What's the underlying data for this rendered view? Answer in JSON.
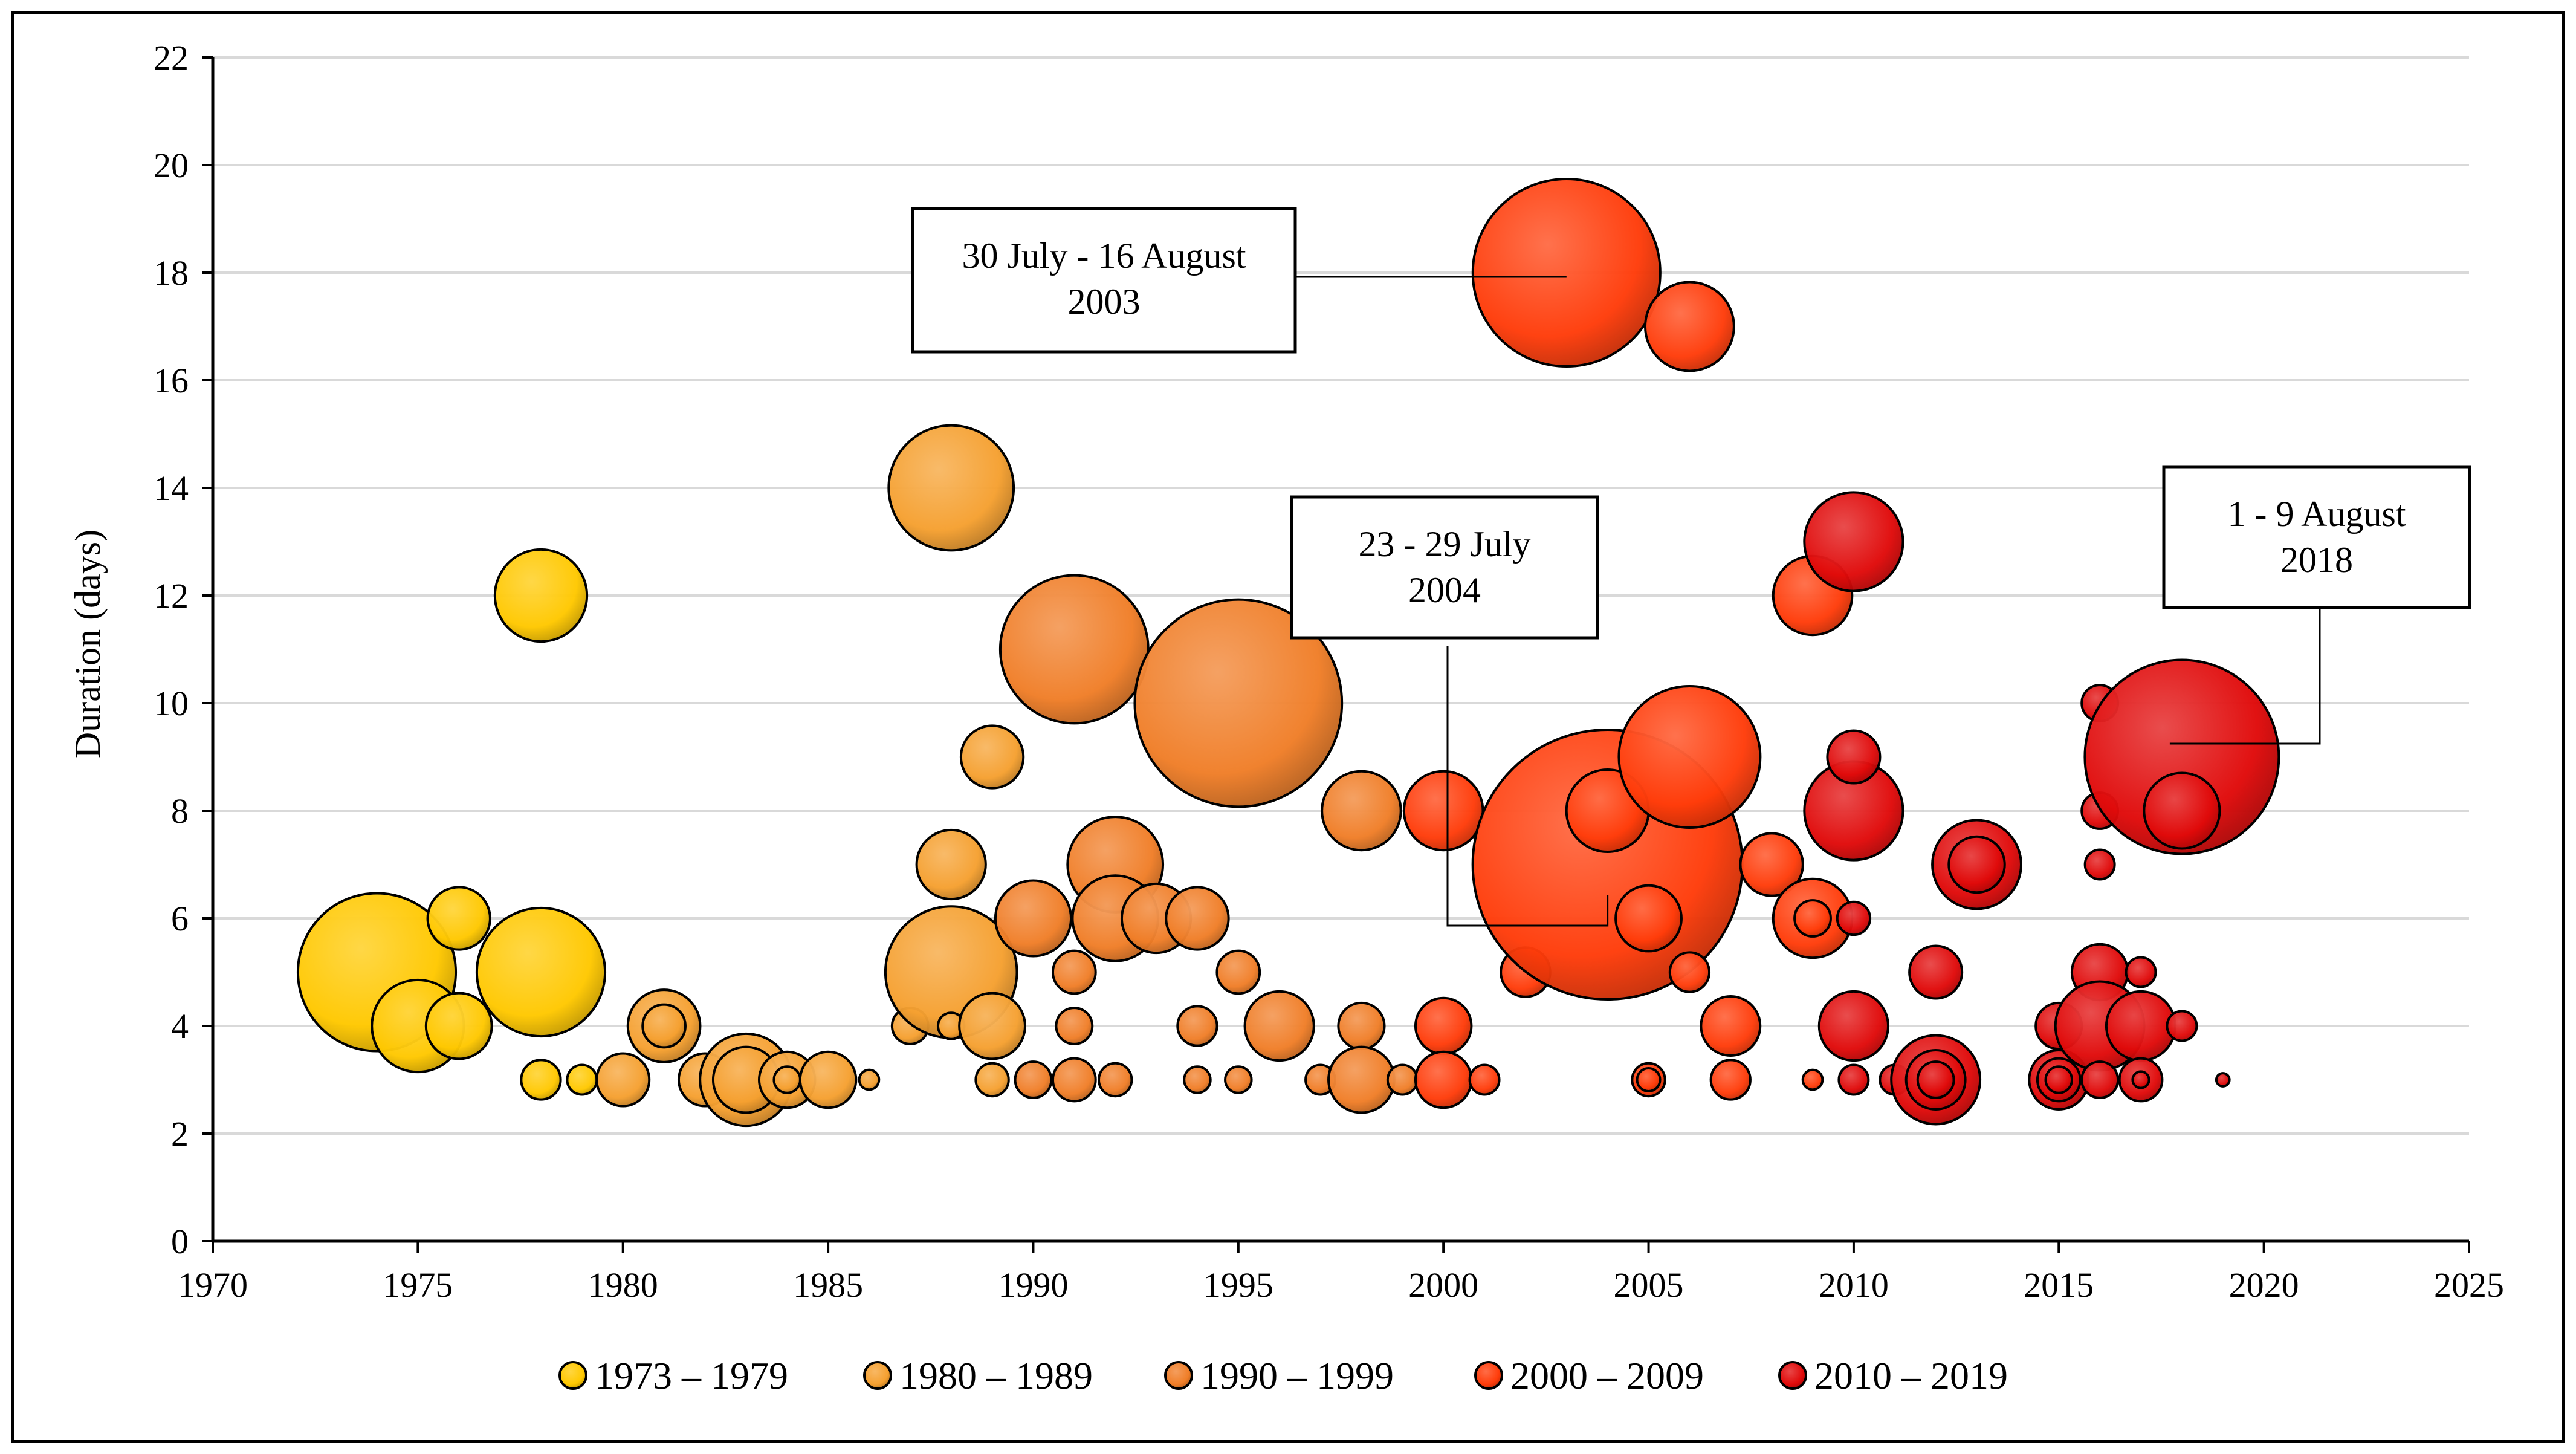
{
  "chart_data": {
    "type": "bubble",
    "title": "",
    "xlabel": "",
    "ylabel": "Duration (days)",
    "xlim": [
      1970,
      2025
    ],
    "ylim": [
      0,
      22
    ],
    "xticks": [
      "1970",
      "1975",
      "1980",
      "1985",
      "1990",
      "1995",
      "2000",
      "2005",
      "2010",
      "2015",
      "2020",
      "2025"
    ],
    "yticks": [
      "0",
      "2",
      "4",
      "6",
      "8",
      "10",
      "12",
      "14",
      "16",
      "18",
      "20",
      "22"
    ],
    "grid": "horizontal",
    "legend_position": "bottom",
    "series": [
      {
        "name": "1973 – 1979",
        "color": "#FFC800",
        "points": [
          {
            "x": 1974,
            "y": 5,
            "r": 48
          },
          {
            "x": 1975,
            "y": 4,
            "r": 28
          },
          {
            "x": 1976,
            "y": 6,
            "r": 19
          },
          {
            "x": 1976,
            "y": 4,
            "r": 20
          },
          {
            "x": 1978,
            "y": 12,
            "r": 28
          },
          {
            "x": 1978,
            "y": 5,
            "r": 39
          },
          {
            "x": 1978,
            "y": 3,
            "r": 12
          },
          {
            "x": 1979,
            "y": 3,
            "r": 9
          }
        ]
      },
      {
        "name": "1980 – 1989",
        "color": "#F5A030",
        "points": [
          {
            "x": 1980,
            "y": 3,
            "r": 16
          },
          {
            "x": 1981,
            "y": 4,
            "r": 22
          },
          {
            "x": 1981,
            "y": 4,
            "r": 13
          },
          {
            "x": 1982,
            "y": 3,
            "r": 16
          },
          {
            "x": 1983,
            "y": 3,
            "r": 28
          },
          {
            "x": 1983,
            "y": 3,
            "r": 20
          },
          {
            "x": 1984,
            "y": 3,
            "r": 17
          },
          {
            "x": 1984,
            "y": 3,
            "r": 8
          },
          {
            "x": 1985,
            "y": 3,
            "r": 17
          },
          {
            "x": 1986,
            "y": 3,
            "r": 6
          },
          {
            "x": 1987,
            "y": 4,
            "r": 11
          },
          {
            "x": 1988,
            "y": 14,
            "r": 38
          },
          {
            "x": 1988,
            "y": 7,
            "r": 21
          },
          {
            "x": 1988,
            "y": 5,
            "r": 40
          },
          {
            "x": 1988,
            "y": 4,
            "r": 8
          },
          {
            "x": 1989,
            "y": 9,
            "r": 19
          },
          {
            "x": 1989,
            "y": 4,
            "r": 20
          },
          {
            "x": 1989,
            "y": 3,
            "r": 10
          }
        ]
      },
      {
        "name": "1990 – 1999",
        "color": "#F07E28",
        "points": [
          {
            "x": 1990,
            "y": 6,
            "r": 23
          },
          {
            "x": 1990,
            "y": 3,
            "r": 11
          },
          {
            "x": 1991,
            "y": 11,
            "r": 45
          },
          {
            "x": 1991,
            "y": 5,
            "r": 13
          },
          {
            "x": 1991,
            "y": 4,
            "r": 11
          },
          {
            "x": 1991,
            "y": 3,
            "r": 13
          },
          {
            "x": 1992,
            "y": 7,
            "r": 29
          },
          {
            "x": 1992,
            "y": 6,
            "r": 26
          },
          {
            "x": 1992,
            "y": 3,
            "r": 10
          },
          {
            "x": 1993,
            "y": 6,
            "r": 21
          },
          {
            "x": 1994,
            "y": 6,
            "r": 19
          },
          {
            "x": 1994,
            "y": 4,
            "r": 12
          },
          {
            "x": 1994,
            "y": 3,
            "r": 8
          },
          {
            "x": 1995,
            "y": 10,
            "r": 63
          },
          {
            "x": 1995,
            "y": 5,
            "r": 13
          },
          {
            "x": 1995,
            "y": 3,
            "r": 8
          },
          {
            "x": 1996,
            "y": 4,
            "r": 21
          },
          {
            "x": 1997,
            "y": 3,
            "r": 9
          },
          {
            "x": 1998,
            "y": 8,
            "r": 24
          },
          {
            "x": 1998,
            "y": 4,
            "r": 14
          },
          {
            "x": 1998,
            "y": 3,
            "r": 20
          },
          {
            "x": 1999,
            "y": 3,
            "r": 9
          }
        ]
      },
      {
        "name": "2000 – 2009",
        "color": "#FF3C0A",
        "points": [
          {
            "x": 2000,
            "y": 8,
            "r": 24
          },
          {
            "x": 2000,
            "y": 4,
            "r": 17
          },
          {
            "x": 2000,
            "y": 3,
            "r": 17
          },
          {
            "x": 2001,
            "y": 3,
            "r": 9
          },
          {
            "x": 2002,
            "y": 5,
            "r": 15
          },
          {
            "x": 2003,
            "y": 18,
            "r": 57
          },
          {
            "x": 2004,
            "y": 7,
            "r": 82
          },
          {
            "x": 2004,
            "y": 8,
            "r": 25
          },
          {
            "x": 2005,
            "y": 6,
            "r": 20
          },
          {
            "x": 2005,
            "y": 3,
            "r": 10
          },
          {
            "x": 2005,
            "y": 3,
            "r": 7
          },
          {
            "x": 2006,
            "y": 17,
            "r": 27
          },
          {
            "x": 2006,
            "y": 9,
            "r": 43
          },
          {
            "x": 2006,
            "y": 5,
            "r": 12
          },
          {
            "x": 2007,
            "y": 4,
            "r": 18
          },
          {
            "x": 2007,
            "y": 3,
            "r": 12
          },
          {
            "x": 2008,
            "y": 7,
            "r": 19
          },
          {
            "x": 2009,
            "y": 12,
            "r": 24
          },
          {
            "x": 2009,
            "y": 6,
            "r": 24
          },
          {
            "x": 2009,
            "y": 6,
            "r": 11
          },
          {
            "x": 2009,
            "y": 3,
            "r": 6
          }
        ]
      },
      {
        "name": "2010 – 2019",
        "color": "#E00A0A",
        "points": [
          {
            "x": 2010,
            "y": 13,
            "r": 30
          },
          {
            "x": 2010,
            "y": 8,
            "r": 30
          },
          {
            "x": 2010,
            "y": 9,
            "r": 16
          },
          {
            "x": 2010,
            "y": 6,
            "r": 10
          },
          {
            "x": 2010,
            "y": 4,
            "r": 21
          },
          {
            "x": 2010,
            "y": 3,
            "r": 9
          },
          {
            "x": 2011,
            "y": 3,
            "r": 9
          },
          {
            "x": 2012,
            "y": 5,
            "r": 16
          },
          {
            "x": 2012,
            "y": 3,
            "r": 27
          },
          {
            "x": 2012,
            "y": 3,
            "r": 18
          },
          {
            "x": 2012,
            "y": 3,
            "r": 11
          },
          {
            "x": 2013,
            "y": 7,
            "r": 27
          },
          {
            "x": 2013,
            "y": 7,
            "r": 17
          },
          {
            "x": 2015,
            "y": 4,
            "r": 14
          },
          {
            "x": 2015,
            "y": 3,
            "r": 18
          },
          {
            "x": 2015,
            "y": 3,
            "r": 13
          },
          {
            "x": 2015,
            "y": 3,
            "r": 8
          },
          {
            "x": 2016,
            "y": 10,
            "r": 11
          },
          {
            "x": 2016,
            "y": 8,
            "r": 11
          },
          {
            "x": 2016,
            "y": 7,
            "r": 9
          },
          {
            "x": 2016,
            "y": 5,
            "r": 17
          },
          {
            "x": 2016,
            "y": 4,
            "r": 27
          },
          {
            "x": 2016,
            "y": 3,
            "r": 11
          },
          {
            "x": 2017,
            "y": 5,
            "r": 9
          },
          {
            "x": 2017,
            "y": 4,
            "r": 21
          },
          {
            "x": 2017,
            "y": 3,
            "r": 13
          },
          {
            "x": 2017,
            "y": 3,
            "r": 5
          },
          {
            "x": 2018,
            "y": 9,
            "r": 59
          },
          {
            "x": 2018,
            "y": 8,
            "r": 23
          },
          {
            "x": 2018,
            "y": 4,
            "r": 9
          },
          {
            "x": 2019,
            "y": 3,
            "r": 4
          }
        ]
      }
    ],
    "annotations": [
      {
        "lines": [
          "30 July - 16 August",
          "2003"
        ],
        "target": {
          "x": 2003,
          "y": 18
        }
      },
      {
        "lines": [
          "23 - 29 July",
          "2004"
        ],
        "target": {
          "x": 2004,
          "y": 6
        }
      },
      {
        "lines": [
          "1 - 9 August",
          "2018"
        ],
        "target": {
          "x": 2018,
          "y": 9.2
        }
      }
    ]
  }
}
